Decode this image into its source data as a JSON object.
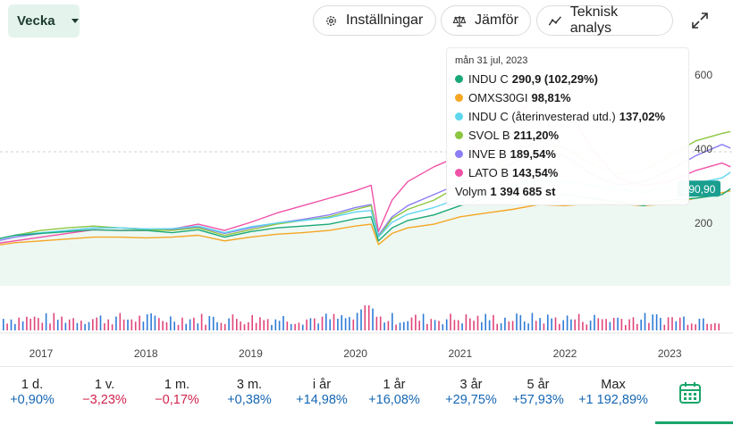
{
  "toolbar": {
    "period": "Vecka",
    "settings": "Inställningar",
    "compare": "Jämför",
    "technical": "Teknisk analys"
  },
  "tooltip": {
    "date": "mån 31 jul, 2023",
    "rows": [
      {
        "name": "INDU C",
        "value": "290,9 (102,29%)",
        "color": "#1aa877"
      },
      {
        "name": "OMXS30GI",
        "value": "98,81%",
        "color": "#f5a623"
      },
      {
        "name": "INDU C (återinvesterad utd.)",
        "value": "137,02%",
        "color": "#5dd6ee"
      },
      {
        "name": "SVOL B",
        "value": "211,20%",
        "color": "#8cc63f"
      },
      {
        "name": "INVE B",
        "value": "189,54%",
        "color": "#8b7ef5"
      },
      {
        "name": "LATO B",
        "value": "143,54%",
        "color": "#f052a8"
      }
    ],
    "volume_label": "Volym",
    "volume_value": "1 394 685 st"
  },
  "chart_data": {
    "type": "line",
    "x_labels": [
      "2017",
      "2018",
      "2019",
      "2020",
      "2021",
      "2022",
      "2023"
    ],
    "y_ticks": [
      200,
      400,
      600
    ],
    "ylim": [
      110,
      700
    ],
    "price_label": "290,90",
    "x": [
      2016.5,
      2016.75,
      2017.0,
      2017.25,
      2017.5,
      2017.75,
      2018.0,
      2018.25,
      2018.5,
      2018.75,
      2019.0,
      2019.25,
      2019.5,
      2019.75,
      2020.0,
      2020.15,
      2020.22,
      2020.35,
      2020.5,
      2020.75,
      2021.0,
      2021.25,
      2021.5,
      2021.75,
      2022.0,
      2022.25,
      2022.5,
      2022.75,
      2023.0,
      2023.25,
      2023.5,
      2023.58
    ],
    "series": [
      {
        "name": "INDU C",
        "color": "#1aa877",
        "values": [
          150,
          165,
          170,
          175,
          180,
          178,
          178,
          172,
          180,
          160,
          175,
          185,
          190,
          195,
          210,
          215,
          150,
          185,
          205,
          220,
          245,
          265,
          275,
          280,
          275,
          265,
          255,
          245,
          260,
          265,
          275,
          290.9
        ]
      },
      {
        "name": "OMXS30GI",
        "color": "#f5a623",
        "values": [
          135,
          145,
          150,
          155,
          160,
          160,
          158,
          160,
          165,
          150,
          160,
          168,
          172,
          178,
          190,
          195,
          140,
          170,
          185,
          195,
          215,
          225,
          235,
          248,
          245,
          250,
          250,
          245,
          250,
          265,
          280,
          285
        ]
      },
      {
        "name": "INDU C (återinvesterad utd.)",
        "color": "#5dd6ee",
        "values": [
          150,
          165,
          172,
          178,
          185,
          185,
          182,
          183,
          190,
          172,
          188,
          198,
          205,
          212,
          228,
          232,
          160,
          200,
          222,
          240,
          265,
          285,
          300,
          312,
          310,
          300,
          290,
          280,
          295,
          305,
          320,
          335
        ]
      },
      {
        "name": "SVOL B",
        "color": "#8cc63f",
        "values": [
          150,
          165,
          178,
          185,
          190,
          185,
          180,
          178,
          185,
          165,
          180,
          195,
          205,
          215,
          235,
          245,
          160,
          210,
          235,
          260,
          300,
          340,
          380,
          420,
          400,
          360,
          330,
          340,
          380,
          420,
          440,
          445
        ]
      },
      {
        "name": "INVE B",
        "color": "#8b7ef5",
        "values": [
          145,
          160,
          170,
          178,
          185,
          185,
          182,
          180,
          188,
          170,
          185,
          198,
          208,
          220,
          240,
          248,
          165,
          215,
          245,
          275,
          305,
          330,
          360,
          395,
          380,
          330,
          300,
          310,
          340,
          380,
          410,
          400
        ]
      },
      {
        "name": "LATO B",
        "color": "#f052a8",
        "values": [
          140,
          150,
          160,
          170,
          180,
          178,
          178,
          182,
          195,
          178,
          200,
          225,
          245,
          265,
          285,
          300,
          175,
          260,
          310,
          350,
          380,
          420,
          460,
          560,
          520,
          400,
          320,
          300,
          310,
          340,
          360,
          350
        ]
      }
    ],
    "volume": {
      "type": "bar",
      "note_count": 185
    }
  },
  "returns": [
    {
      "label": "1 d.",
      "value": "+0,90%",
      "sign": "pos"
    },
    {
      "label": "1 v.",
      "value": "−3,23%",
      "sign": "neg"
    },
    {
      "label": "1 m.",
      "value": "−0,17%",
      "sign": "neg"
    },
    {
      "label": "3 m.",
      "value": "+0,38%",
      "sign": "pos"
    },
    {
      "label": "i år",
      "value": "+14,98%",
      "sign": "pos"
    },
    {
      "label": "1 år",
      "value": "+16,08%",
      "sign": "pos"
    },
    {
      "label": "3 år",
      "value": "+29,75%",
      "sign": "pos"
    },
    {
      "label": "5 år",
      "value": "+57,93%",
      "sign": "pos"
    },
    {
      "label": "Max",
      "value": "+1 192,89%",
      "sign": "pos"
    }
  ],
  "icons": {
    "period": "chevron-down-icon",
    "settings": "gear-icon",
    "compare": "scale-icon",
    "technical": "line-chart-icon",
    "expand": "expand-icon",
    "calendar": "calendar-icon"
  },
  "colors": {
    "accent": "#1aa56a",
    "positive": "#1566b3",
    "negative": "#d0234d",
    "select_bg": "#e4f4ec"
  }
}
